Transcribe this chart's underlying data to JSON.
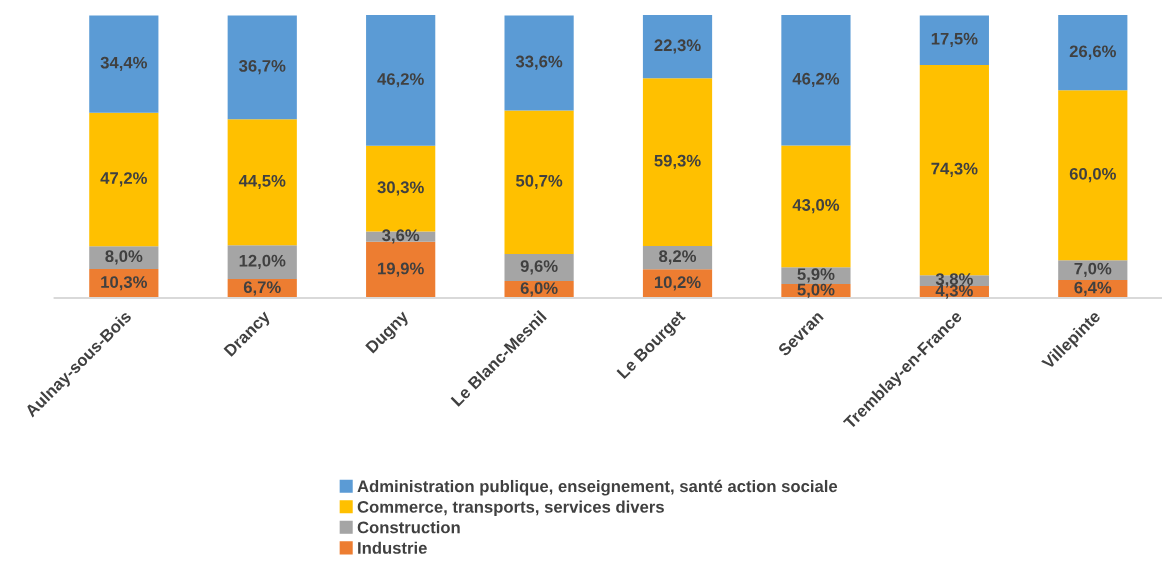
{
  "chart_data": {
    "type": "bar",
    "stacked": true,
    "categories": [
      "Aulnay-sous-Bois",
      "Drancy",
      "Dugny",
      "Le Blanc-Mesnil",
      "Le Bourget",
      "Sevran",
      "Tremblay-en-France",
      "Villepinte"
    ],
    "ylim": [
      0,
      100
    ],
    "tick_labels": "x",
    "grid": false,
    "legend": "bottom",
    "series": [
      {
        "name": "Industrie",
        "color": "#ed7d31",
        "values": [
          10.3,
          6.7,
          19.9,
          6.0,
          10.2,
          5.0,
          4.3,
          6.4
        ],
        "value_labels": [
          "10,3%",
          "6,7%",
          "19,9%",
          "6,0%",
          "10,2%",
          "5,0%",
          "4,3%",
          "6,4%"
        ]
      },
      {
        "name": "Construction",
        "color": "#a5a5a5",
        "values": [
          8.0,
          12.0,
          3.6,
          9.6,
          8.2,
          5.9,
          3.8,
          7.0
        ],
        "value_labels": [
          "8,0%",
          "12,0%",
          "3,6%",
          "9,6%",
          "8,2%",
          "5,9%",
          "3,8%",
          "7,0%"
        ]
      },
      {
        "name": "Commerce, transports, services divers",
        "color": "#ffc000",
        "values": [
          47.2,
          44.5,
          30.3,
          50.7,
          59.3,
          43.0,
          74.3,
          60.0
        ],
        "value_labels": [
          "47,2%",
          "44,5%",
          "30,3%",
          "50,7%",
          "59,3%",
          "43,0%",
          "74,3%",
          "60,0%"
        ]
      },
      {
        "name": "Administration publique, enseignement, santé action sociale",
        "color": "#5b9bd5",
        "values": [
          34.4,
          36.7,
          46.2,
          33.6,
          22.3,
          46.2,
          17.5,
          26.6
        ],
        "value_labels": [
          "34,4%",
          "36,7%",
          "46,2%",
          "33,6%",
          "22,3%",
          "46,2%",
          "17,5%",
          "26,6%"
        ]
      }
    ]
  }
}
